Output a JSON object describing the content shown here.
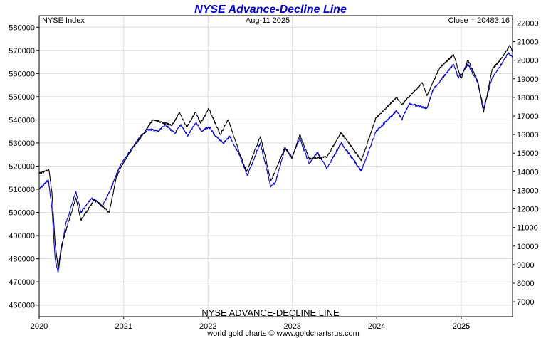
{
  "chart_data": {
    "type": "line",
    "title": "NYSE Advance-Decline Line",
    "title_color": "#0000cc",
    "subtitle_left": "NYSE Index",
    "subtitle_center": "Aug-11  2025",
    "subtitle_right": "Close = 20483.16",
    "bottom_label": "NYSE ADVANCE-DECLINE LINE",
    "credit": "world gold charts © www.goldchartsrus.com",
    "grid": true,
    "legend": "none",
    "x_range": [
      "2020-01-01",
      "2025-08-11"
    ],
    "x_tick_labels": [
      "2020",
      "2021",
      "2022",
      "2023",
      "2024",
      "2025",
      "2025"
    ],
    "x_tick_dates": [
      "2020-01-01",
      "2021-01-01",
      "2022-01-01",
      "2023-01-01",
      "2024-01-01",
      "2025-01-01",
      "2025-01-01"
    ],
    "y_left": {
      "label": "",
      "range": [
        455000,
        585000
      ],
      "ticks": [
        460000,
        470000,
        480000,
        490000,
        500000,
        510000,
        520000,
        530000,
        540000,
        550000,
        560000,
        570000,
        580000
      ]
    },
    "y_right": {
      "label": "",
      "range": [
        6200,
        22400
      ],
      "ticks": [
        7000,
        8000,
        9000,
        10000,
        11000,
        12000,
        13000,
        14000,
        15000,
        16000,
        17000,
        18000,
        19000,
        20000,
        21000,
        22000
      ]
    },
    "series": [
      {
        "axis": "left",
        "color": "#0000cc",
        "points": [
          [
            "2020-01-01",
            510000
          ],
          [
            "2020-02-10",
            514000
          ],
          [
            "2020-02-25",
            502000
          ],
          [
            "2020-03-10",
            480000
          ],
          [
            "2020-03-23",
            474000
          ],
          [
            "2020-04-05",
            483000
          ],
          [
            "2020-04-25",
            495000
          ],
          [
            "2020-06-08",
            509000
          ],
          [
            "2020-06-30",
            500000
          ],
          [
            "2020-08-15",
            506000
          ],
          [
            "2020-10-01",
            503000
          ],
          [
            "2020-11-05",
            510000
          ],
          [
            "2020-12-15",
            520000
          ],
          [
            "2021-01-25",
            526000
          ],
          [
            "2021-03-15",
            533000
          ],
          [
            "2021-04-20",
            536000
          ],
          [
            "2021-06-01",
            535000
          ],
          [
            "2021-07-01",
            538000
          ],
          [
            "2021-08-10",
            534000
          ],
          [
            "2021-09-05",
            538000
          ],
          [
            "2021-10-05",
            533000
          ],
          [
            "2021-11-10",
            539000
          ],
          [
            "2021-12-05",
            535000
          ],
          [
            "2022-01-05",
            537000
          ],
          [
            "2022-02-01",
            533000
          ],
          [
            "2022-03-10",
            530000
          ],
          [
            "2022-04-05",
            533000
          ],
          [
            "2022-05-15",
            525000
          ],
          [
            "2022-06-20",
            516000
          ],
          [
            "2022-08-15",
            530000
          ],
          [
            "2022-09-30",
            511000
          ],
          [
            "2022-10-20",
            513000
          ],
          [
            "2022-12-01",
            528000
          ],
          [
            "2022-12-30",
            524000
          ],
          [
            "2023-02-02",
            532000
          ],
          [
            "2023-03-15",
            521000
          ],
          [
            "2023-04-20",
            526000
          ],
          [
            "2023-05-31",
            519000
          ],
          [
            "2023-07-31",
            530000
          ],
          [
            "2023-10-27",
            518000
          ],
          [
            "2023-12-29",
            535000
          ],
          [
            "2024-03-28",
            544000
          ],
          [
            "2024-04-19",
            540000
          ],
          [
            "2024-05-20",
            547000
          ],
          [
            "2024-08-05",
            545000
          ],
          [
            "2024-09-01",
            553000
          ],
          [
            "2024-11-29",
            564000
          ],
          [
            "2024-12-20",
            558000
          ],
          [
            "2025-01-30",
            564000
          ],
          [
            "2025-03-13",
            556000
          ],
          [
            "2025-04-08",
            545000
          ],
          [
            "2025-05-15",
            558000
          ],
          [
            "2025-06-30",
            565000
          ],
          [
            "2025-07-25",
            569000
          ],
          [
            "2025-08-11",
            567000
          ]
        ]
      },
      {
        "axis": "right",
        "color": "#000000",
        "points": [
          [
            "2020-01-01",
            13900
          ],
          [
            "2020-02-12",
            14100
          ],
          [
            "2020-02-25",
            12900
          ],
          [
            "2020-03-10",
            10200
          ],
          [
            "2020-03-23",
            8800
          ],
          [
            "2020-04-08",
            10100
          ],
          [
            "2020-06-08",
            12600
          ],
          [
            "2020-06-30",
            11400
          ],
          [
            "2020-08-28",
            12500
          ],
          [
            "2020-10-30",
            11800
          ],
          [
            "2020-11-30",
            13700
          ],
          [
            "2020-12-31",
            14500
          ],
          [
            "2021-02-10",
            15300
          ],
          [
            "2021-03-31",
            16100
          ],
          [
            "2021-05-07",
            16800
          ],
          [
            "2021-07-30",
            16500
          ],
          [
            "2021-08-31",
            17200
          ],
          [
            "2021-09-30",
            16400
          ],
          [
            "2021-11-08",
            17200
          ],
          [
            "2021-11-30",
            16600
          ],
          [
            "2022-01-04",
            17400
          ],
          [
            "2022-02-23",
            16000
          ],
          [
            "2022-03-29",
            16800
          ],
          [
            "2022-05-20",
            14900
          ],
          [
            "2022-06-17",
            14000
          ],
          [
            "2022-08-16",
            15900
          ],
          [
            "2022-09-30",
            13500
          ],
          [
            "2022-11-30",
            15300
          ],
          [
            "2022-12-30",
            14700
          ],
          [
            "2023-02-02",
            16000
          ],
          [
            "2023-03-15",
            14700
          ],
          [
            "2023-05-31",
            14800
          ],
          [
            "2023-07-31",
            16100
          ],
          [
            "2023-10-27",
            14600
          ],
          [
            "2023-12-29",
            16900
          ],
          [
            "2024-03-28",
            18000
          ],
          [
            "2024-04-19",
            17600
          ],
          [
            "2024-07-16",
            18800
          ],
          [
            "2024-08-05",
            18100
          ],
          [
            "2024-09-30",
            19600
          ],
          [
            "2024-11-29",
            20300
          ],
          [
            "2024-12-31",
            19000
          ],
          [
            "2025-01-30",
            20000
          ],
          [
            "2025-03-13",
            18900
          ],
          [
            "2025-04-08",
            17200
          ],
          [
            "2025-05-15",
            19500
          ],
          [
            "2025-06-30",
            20200
          ],
          [
            "2025-07-30",
            20800
          ],
          [
            "2025-08-11",
            20483
          ]
        ]
      }
    ]
  }
}
